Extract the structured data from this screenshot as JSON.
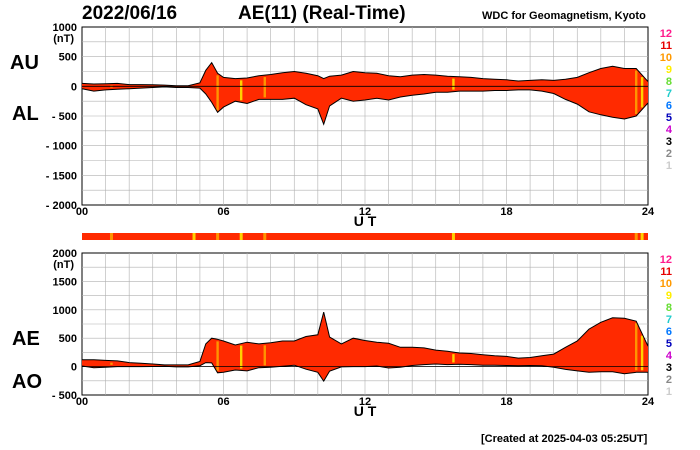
{
  "header": {
    "date": "2022/06/16",
    "title": "AE(11) (Real-Time)",
    "source": "WDC for Geomagnetism, Kyoto"
  },
  "footer": {
    "created": "[Created at 2025-04-03 05:25UT]"
  },
  "colors": {
    "fill": "#ff2a00",
    "outline": "#000000",
    "bar_orange": "#ff9400",
    "bar_yellow": "#ffd200",
    "grid": "#b0b0b0"
  },
  "station_count_legend": [
    {
      "label": "12",
      "color": "#ff1a8c"
    },
    {
      "label": "11",
      "color": "#e60000"
    },
    {
      "label": "10",
      "color": "#ff9900"
    },
    {
      "label": "9",
      "color": "#ffee00"
    },
    {
      "label": "8",
      "color": "#66dd33"
    },
    {
      "label": "7",
      "color": "#22cccc"
    },
    {
      "label": "6",
      "color": "#0077ff"
    },
    {
      "label": "5",
      "color": "#0000bb"
    },
    {
      "label": "4",
      "color": "#cc00cc"
    },
    {
      "label": "3",
      "color": "#000000"
    },
    {
      "label": "2",
      "color": "#888888"
    },
    {
      "label": "1",
      "color": "#cccccc"
    }
  ],
  "chart_data": [
    {
      "type": "area",
      "panel": "AU/AL",
      "upper_label": "AU",
      "lower_label": "AL",
      "unit_label": "(nT)",
      "xlabel": "U T",
      "x_ticks": [
        "00",
        "06",
        "12",
        "18",
        "24"
      ],
      "xlim": [
        0,
        24
      ],
      "ylim": [
        -2000,
        1000
      ],
      "y_ticks": [
        "1000",
        "500",
        "0",
        "- 500",
        "- 1000",
        "- 1500",
        "- 2000"
      ],
      "y_tick_values": [
        1000,
        500,
        0,
        -500,
        -1000,
        -1500,
        -2000
      ],
      "grid": true,
      "x": [
        0,
        0.5,
        1,
        1.5,
        2,
        2.5,
        3,
        3.5,
        4,
        4.5,
        5,
        5.25,
        5.5,
        5.75,
        6,
        6.5,
        7,
        7.5,
        8,
        8.5,
        9,
        9.5,
        10,
        10.25,
        10.5,
        11,
        11.5,
        12,
        12.5,
        13,
        13.5,
        14,
        14.5,
        15,
        15.5,
        16,
        16.5,
        17,
        17.5,
        18,
        18.5,
        19,
        19.5,
        20,
        20.5,
        21,
        21.5,
        22,
        22.5,
        23,
        23.5,
        24
      ],
      "series": [
        {
          "name": "AU",
          "values": [
            50,
            40,
            45,
            50,
            30,
            30,
            25,
            20,
            10,
            10,
            60,
            270,
            400,
            220,
            150,
            130,
            140,
            180,
            200,
            230,
            250,
            220,
            180,
            130,
            170,
            190,
            250,
            230,
            220,
            180,
            160,
            190,
            200,
            190,
            170,
            160,
            150,
            130,
            120,
            110,
            90,
            100,
            110,
            100,
            120,
            150,
            230,
            300,
            340,
            300,
            300,
            80
          ]
        },
        {
          "name": "AL",
          "values": [
            -40,
            -80,
            -60,
            -50,
            -40,
            -30,
            -20,
            -10,
            -20,
            -20,
            -30,
            -130,
            -270,
            -440,
            -350,
            -250,
            -290,
            -220,
            -220,
            -220,
            -200,
            -310,
            -380,
            -640,
            -330,
            -200,
            -250,
            -230,
            -200,
            -230,
            -180,
            -150,
            -130,
            -100,
            -100,
            -80,
            -80,
            -80,
            -70,
            -70,
            -60,
            -60,
            -80,
            -120,
            -220,
            -300,
            -430,
            -480,
            -520,
            -550,
            -500,
            -280
          ]
        }
      ]
    },
    {
      "type": "area",
      "panel": "AE/AO",
      "upper_label": "AE",
      "lower_label": "AO",
      "unit_label": "(nT)",
      "xlabel": "U T",
      "x_ticks": [
        "00",
        "06",
        "12",
        "18",
        "24"
      ],
      "xlim": [
        0,
        24
      ],
      "ylim": [
        -500,
        2000
      ],
      "y_ticks": [
        "2000",
        "1500",
        "1000",
        "500",
        "0",
        "- 500"
      ],
      "y_tick_values": [
        2000,
        1500,
        1000,
        500,
        0,
        -500
      ],
      "grid": true,
      "x": [
        0,
        0.5,
        1,
        1.5,
        2,
        2.5,
        3,
        3.5,
        4,
        4.5,
        5,
        5.25,
        5.5,
        5.75,
        6,
        6.5,
        7,
        7.5,
        8,
        8.5,
        9,
        9.5,
        10,
        10.25,
        10.5,
        11,
        11.5,
        12,
        12.5,
        13,
        13.5,
        14,
        14.5,
        15,
        15.5,
        16,
        16.5,
        17,
        17.5,
        18,
        18.5,
        19,
        19.5,
        20,
        20.5,
        21,
        21.5,
        22,
        22.5,
        23,
        23.5,
        24
      ],
      "series": [
        {
          "name": "AE",
          "values": [
            120,
            120,
            110,
            100,
            70,
            60,
            45,
            30,
            30,
            30,
            90,
            400,
            500,
            480,
            450,
            380,
            430,
            400,
            420,
            450,
            450,
            530,
            560,
            960,
            520,
            400,
            500,
            460,
            430,
            410,
            340,
            340,
            330,
            290,
            270,
            240,
            230,
            210,
            190,
            180,
            150,
            160,
            190,
            220,
            340,
            450,
            660,
            780,
            860,
            850,
            800,
            360
          ]
        },
        {
          "name": "AO",
          "values": [
            10,
            -20,
            -10,
            0,
            0,
            0,
            2,
            5,
            -5,
            -5,
            15,
            70,
            65,
            -110,
            -100,
            -60,
            -75,
            -20,
            -10,
            5,
            25,
            -45,
            -100,
            -255,
            -80,
            -5,
            0,
            0,
            10,
            -25,
            -10,
            20,
            35,
            45,
            35,
            40,
            35,
            25,
            25,
            20,
            15,
            20,
            15,
            -10,
            -50,
            -75,
            -100,
            -90,
            -90,
            -125,
            -100,
            -100
          ]
        }
      ],
      "count_bar": {
        "base_color": "#ff2a00",
        "markers_ut": [
          1.25,
          4.75,
          5.75,
          6.75,
          7.75,
          15.75,
          23.5,
          23.75
        ]
      }
    }
  ]
}
